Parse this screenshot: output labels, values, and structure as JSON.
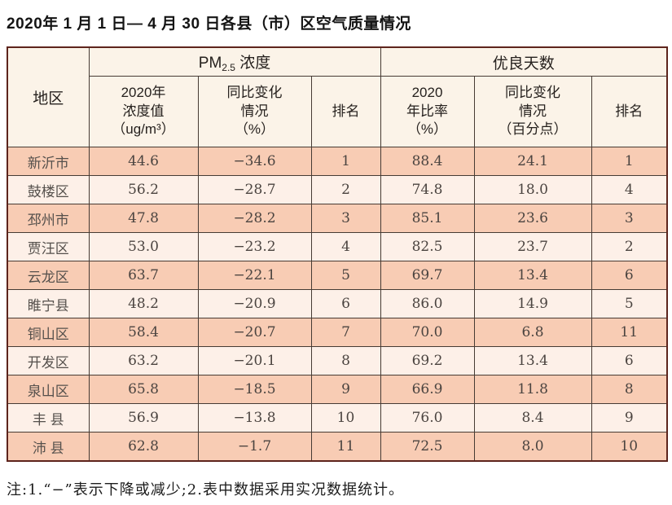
{
  "title": "2020年 1 月 1 日— 4 月 30 日各县（市）区空气质量情况",
  "note": "注:1.“−”表示下降或减少;2.表中数据采用实况数据统计。",
  "header": {
    "region": "地区",
    "pm25_group": {
      "prefix": "PM",
      "sub": "2.5",
      "suffix": " 浓度"
    },
    "good_days_group": "优良天数",
    "pm_value": {
      "l1": "2020年",
      "l2": "浓度值",
      "l3": "（ug/m³）"
    },
    "pm_change": {
      "l1": "同比变化",
      "l2": "情况",
      "l3": "（%）"
    },
    "pm_rank": "排名",
    "rate": {
      "l1": "2020",
      "l2": "年比率",
      "l3": "（%）"
    },
    "rate_change": {
      "l1": "同比变化",
      "l2": "情况",
      "l3": "（百分点）"
    },
    "days_rank": "排名"
  },
  "chart_data": {
    "type": "table",
    "title": "2020年 1 月 1 日— 4 月 30 日各县（市）区空气质量情况",
    "column_groups": [
      "地区",
      "PM2.5 浓度",
      "优良天数"
    ],
    "columns": [
      "地区",
      "2020年浓度值（ug/m³）",
      "同比变化情况（%）",
      "排名",
      "2020年比率（%）",
      "同比变化情况（百分点）",
      "排名"
    ],
    "rows": [
      [
        "新沂市",
        "44.6",
        "−34.6",
        "1",
        "88.4",
        "24.1",
        "1"
      ],
      [
        "鼓楼区",
        "56.2",
        "−28.7",
        "2",
        "74.8",
        "18.0",
        "4"
      ],
      [
        "邳州市",
        "47.8",
        "−28.2",
        "3",
        "85.1",
        "23.6",
        "3"
      ],
      [
        "贾汪区",
        "53.0",
        "−23.2",
        "4",
        "82.5",
        "23.7",
        "2"
      ],
      [
        "云龙区",
        "63.7",
        "−22.1",
        "5",
        "69.7",
        "13.4",
        "6"
      ],
      [
        "睢宁县",
        "48.2",
        "−20.9",
        "6",
        "86.0",
        "14.9",
        "5"
      ],
      [
        "铜山区",
        "58.4",
        "−20.7",
        "7",
        "70.0",
        "6.8",
        "11"
      ],
      [
        "开发区",
        "63.2",
        "−20.1",
        "8",
        "69.2",
        "13.4",
        "6"
      ],
      [
        "泉山区",
        "65.8",
        "−18.5",
        "9",
        "66.9",
        "11.8",
        "8"
      ],
      [
        "丰 县",
        "56.9",
        "−13.8",
        "10",
        "76.0",
        "8.4",
        "9"
      ],
      [
        "沛 县",
        "62.8",
        "−1.7",
        "11",
        "72.5",
        "8.0",
        "10"
      ]
    ],
    "notes": "注:1.“−”表示下降或减少;2.表中数据采用实况数据统计。",
    "colors": {
      "row_odd_bg": "#f8ccb4",
      "row_even_bg": "#fdf0e8",
      "header_bg": "#fbf3e8",
      "outer_border": "#5d241c",
      "inner_border": "#463b34"
    }
  }
}
